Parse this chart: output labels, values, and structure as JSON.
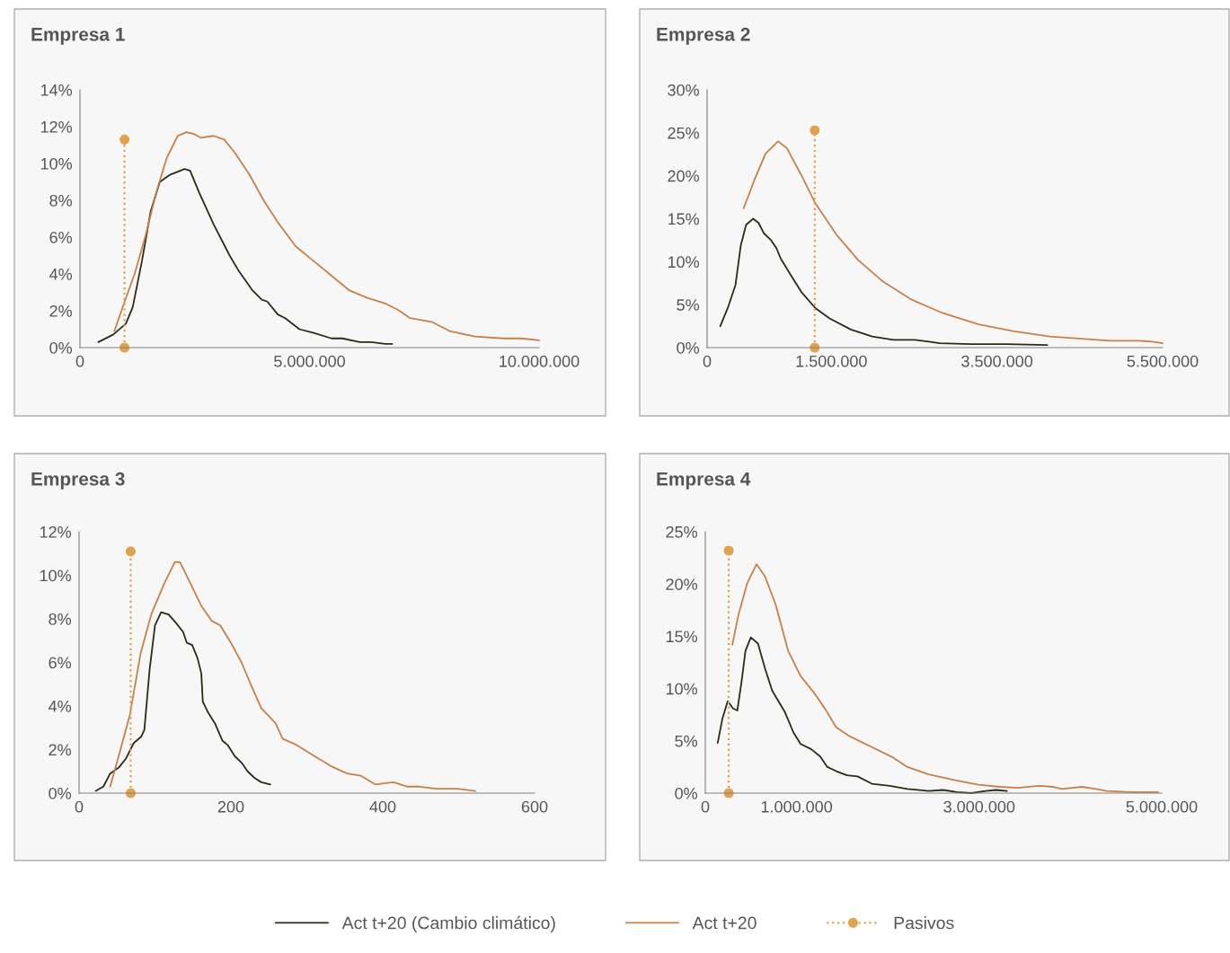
{
  "chart_data": [
    {
      "type": "line",
      "title": "Empresa 1",
      "xlim": [
        0,
        10000000
      ],
      "ylim": [
        0,
        14
      ],
      "xticks": [
        {
          "value": 0,
          "label": "0"
        },
        {
          "value": 5000000,
          "label": "5.000.000"
        },
        {
          "value": 10000000,
          "label": "10.000.000"
        }
      ],
      "yticks": [
        {
          "value": 0,
          "label": "0%"
        },
        {
          "value": 2,
          "label": "2%"
        },
        {
          "value": 4,
          "label": "4%"
        },
        {
          "value": 6,
          "label": "6%"
        },
        {
          "value": 8,
          "label": "8%"
        },
        {
          "value": 10,
          "label": "10%"
        },
        {
          "value": 12,
          "label": "12%"
        },
        {
          "value": 14,
          "label": "14%"
        }
      ],
      "legend": "bottom",
      "series": [
        {
          "name": "Act t+20 (Cambio climático)",
          "color": "#2e2a17",
          "line_style": "solid",
          "marker": "none",
          "x": [
            400000,
            720000,
            1000000,
            1150000,
            1350000,
            1540000,
            1740000,
            1970000,
            2280000,
            2400000,
            2600000,
            2910000,
            3260000,
            3450000,
            3760000,
            3960000,
            4080000,
            4310000,
            4470000,
            4780000,
            5090000,
            5480000,
            5710000,
            6100000,
            6340000,
            6650000,
            6800000
          ],
          "values": [
            0.3,
            0.7,
            1.3,
            2.2,
            4.7,
            7.4,
            9.0,
            9.4,
            9.7,
            9.6,
            8.4,
            6.7,
            5.0,
            4.2,
            3.1,
            2.6,
            2.5,
            1.8,
            1.6,
            1.0,
            0.8,
            0.5,
            0.5,
            0.3,
            0.3,
            0.2,
            0.2
          ]
        },
        {
          "name": "Act t+20",
          "color": "#c8804a",
          "line_style": "solid",
          "marker": "none",
          "x": [
            750000,
            960000,
            1190000,
            1430000,
            1660000,
            1890000,
            2130000,
            2320000,
            2480000,
            2630000,
            2910000,
            3140000,
            3370000,
            3690000,
            4000000,
            4310000,
            4700000,
            5090000,
            5480000,
            5870000,
            6260000,
            6650000,
            6960000,
            7190000,
            7660000,
            8050000,
            8600000,
            9220000,
            9610000,
            10000000
          ],
          "values": [
            0.9,
            2.4,
            4.0,
            6.1,
            8.4,
            10.3,
            11.5,
            11.7,
            11.6,
            11.4,
            11.5,
            11.3,
            10.6,
            9.4,
            8.0,
            6.8,
            5.5,
            4.7,
            3.9,
            3.1,
            2.7,
            2.4,
            2.0,
            1.6,
            1.4,
            0.9,
            0.6,
            0.5,
            0.5,
            0.4
          ]
        },
        {
          "name": "Pasivos",
          "color": "#e0a24e",
          "line_style": "dotted",
          "marker": "circle",
          "x": [
            970000,
            970000
          ],
          "values": [
            0,
            11.3
          ]
        }
      ]
    },
    {
      "type": "line",
      "title": "Empresa 2",
      "xlim": [
        0,
        5500000
      ],
      "ylim": [
        0,
        30
      ],
      "xticks": [
        {
          "value": 0,
          "label": "0"
        },
        {
          "value": 1500000,
          "label": "1.500.000"
        },
        {
          "value": 3500000,
          "label": "3.500.000"
        },
        {
          "value": 5500000,
          "label": "5.500.000"
        }
      ],
      "yticks": [
        {
          "value": 0,
          "label": "0%"
        },
        {
          "value": 5,
          "label": "5%"
        },
        {
          "value": 10,
          "label": "10%"
        },
        {
          "value": 15,
          "label": "15%"
        },
        {
          "value": 20,
          "label": "20%"
        },
        {
          "value": 25,
          "label": "25%"
        },
        {
          "value": 30,
          "label": "30%"
        }
      ],
      "series": [
        {
          "color": "#2e2a17",
          "line_style": "solid",
          "marker": "none",
          "x": [
            159000,
            257000,
            343000,
            407000,
            471000,
            557000,
            622000,
            686000,
            772000,
            836000,
            887000,
            1007000,
            1136000,
            1307000,
            1479000,
            1736000,
            1993000,
            2250000,
            2508000,
            2679000,
            2808000,
            3193000,
            3622000,
            4106000
          ],
          "values": [
            2.5,
            4.8,
            7.3,
            11.9,
            14.3,
            15.0,
            14.5,
            13.3,
            12.5,
            11.6,
            10.4,
            8.5,
            6.5,
            4.6,
            3.4,
            2.1,
            1.3,
            0.9,
            0.9,
            0.7,
            0.5,
            0.4,
            0.4,
            0.3
          ]
        },
        {
          "color": "#c8804a",
          "line_style": "solid",
          "marker": "none",
          "x": [
            441000,
            579000,
            707000,
            857000,
            964000,
            1136000,
            1307000,
            1565000,
            1822000,
            2122000,
            2465000,
            2850000,
            3279000,
            3708000,
            4136000,
            4565000,
            4865000,
            4994000,
            5208000,
            5379000,
            5499000
          ],
          "values": [
            16.2,
            19.7,
            22.6,
            24.0,
            23.2,
            20.1,
            16.8,
            13.1,
            10.2,
            7.7,
            5.6,
            4.0,
            2.7,
            1.9,
            1.3,
            1.0,
            0.8,
            0.8,
            0.8,
            0.7,
            0.5
          ]
        },
        {
          "color": "#e0a24e",
          "line_style": "dotted",
          "marker": "circle",
          "x": [
            1300000,
            1300000
          ],
          "values": [
            0,
            25.3
          ]
        }
      ]
    },
    {
      "type": "line",
      "title": "Empresa 3",
      "xlim": [
        0,
        600
      ],
      "ylim": [
        0,
        12
      ],
      "xticks": [
        0,
        200,
        400,
        600
      ],
      "yticks": [
        {
          "value": 0,
          "label": "0%"
        },
        {
          "value": 2,
          "label": "2%"
        },
        {
          "value": 4,
          "label": "4%"
        },
        {
          "value": 6,
          "label": "6%"
        },
        {
          "value": 8,
          "label": "8%"
        },
        {
          "value": 10,
          "label": "10%"
        },
        {
          "value": 12,
          "label": "12%"
        }
      ],
      "series": [
        {
          "color": "#2e2a17",
          "line_style": "solid",
          "marker": "none",
          "x": [
            22,
            32,
            41,
            53,
            62,
            72,
            82,
            86,
            93,
            100,
            108,
            118,
            128,
            137,
            142,
            149,
            156,
            161,
            163,
            170,
            179,
            189,
            196,
            205,
            214,
            222,
            231,
            240,
            252
          ],
          "values": [
            0.1,
            0.3,
            0.9,
            1.2,
            1.6,
            2.3,
            2.6,
            2.9,
            5.7,
            7.7,
            8.3,
            8.2,
            7.8,
            7.4,
            6.9,
            6.8,
            6.2,
            5.5,
            4.2,
            3.7,
            3.2,
            2.4,
            2.2,
            1.7,
            1.4,
            1.0,
            0.7,
            0.5,
            0.4
          ]
        },
        {
          "color": "#c8804a",
          "line_style": "solid",
          "marker": "none",
          "x": [
            41,
            53,
            67,
            81,
            95,
            112,
            126,
            133,
            147,
            161,
            175,
            186,
            200,
            214,
            226,
            240,
            259,
            268,
            287,
            310,
            334,
            353,
            371,
            390,
            414,
            432,
            446,
            470,
            498,
            522
          ],
          "values": [
            0.3,
            1.8,
            3.6,
            6.4,
            8.2,
            9.6,
            10.6,
            10.6,
            9.6,
            8.6,
            7.9,
            7.7,
            6.9,
            6.0,
            5.0,
            3.9,
            3.2,
            2.5,
            2.2,
            1.7,
            1.2,
            0.9,
            0.8,
            0.4,
            0.5,
            0.3,
            0.3,
            0.2,
            0.2,
            0.1
          ]
        },
        {
          "color": "#e0a24e",
          "line_style": "dotted",
          "marker": "circle",
          "x": [
            68,
            68
          ],
          "values": [
            0,
            11.1
          ]
        }
      ]
    },
    {
      "type": "line",
      "title": "Empresa 4",
      "xlim": [
        0,
        5000000
      ],
      "ylim": [
        0,
        25
      ],
      "xticks": [
        {
          "value": 0,
          "label": "0"
        },
        {
          "value": 1000000,
          "label": "1.000.000"
        },
        {
          "value": 3000000,
          "label": "3.000.000"
        },
        {
          "value": 5000000,
          "label": "5.000.000"
        }
      ],
      "yticks": [
        {
          "value": 0,
          "label": "0%"
        },
        {
          "value": 5,
          "label": "5%"
        },
        {
          "value": 10,
          "label": "10%"
        },
        {
          "value": 15,
          "label": "15%"
        },
        {
          "value": 20,
          "label": "20%"
        },
        {
          "value": 25,
          "label": "25%"
        }
      ],
      "series": [
        {
          "color": "#2e2a17",
          "line_style": "solid",
          "marker": "none",
          "x": [
            136000,
            187000,
            246000,
            304000,
            351000,
            401000,
            440000,
            499000,
            577000,
            655000,
            733000,
            869000,
            966000,
            1044000,
            1161000,
            1259000,
            1337000,
            1434000,
            1551000,
            1668000,
            1824000,
            2019000,
            2214000,
            2447000,
            2603000,
            2759000,
            2915000,
            3071000,
            3188000,
            3305000
          ],
          "values": [
            4.8,
            7.1,
            8.8,
            8.1,
            7.9,
            10.9,
            13.6,
            14.9,
            14.3,
            11.9,
            9.8,
            7.8,
            5.8,
            4.7,
            4.2,
            3.5,
            2.5,
            2.1,
            1.7,
            1.6,
            0.9,
            0.7,
            0.4,
            0.2,
            0.3,
            0.1,
            0.0,
            0.2,
            0.3,
            0.2
          ]
        },
        {
          "color": "#c8804a",
          "line_style": "solid",
          "marker": "none",
          "x": [
            296000,
            362000,
            460000,
            561000,
            655000,
            772000,
            908000,
            1044000,
            1200000,
            1317000,
            1434000,
            1590000,
            1824000,
            2058000,
            2214000,
            2447000,
            2759000,
            2993000,
            3227000,
            3422000,
            3655000,
            3811000,
            3909000,
            4123000,
            4279000,
            4396000,
            4669000,
            4961000
          ],
          "values": [
            14.2,
            17.0,
            20.1,
            21.9,
            20.7,
            18.0,
            13.6,
            11.2,
            9.5,
            8.0,
            6.3,
            5.4,
            4.4,
            3.4,
            2.5,
            1.8,
            1.2,
            0.8,
            0.6,
            0.5,
            0.7,
            0.6,
            0.4,
            0.6,
            0.4,
            0.2,
            0.1,
            0.1
          ]
        },
        {
          "color": "#e0a24e",
          "line_style": "dotted",
          "marker": "circle",
          "x": [
            257000,
            257000
          ],
          "values": [
            0,
            23.2
          ]
        }
      ]
    }
  ]
}
